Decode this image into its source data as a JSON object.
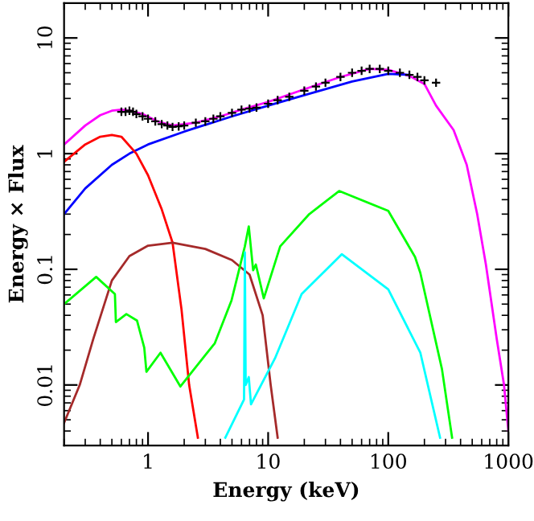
{
  "chart_data": {
    "type": "line",
    "xlabel": "Energy (keV)",
    "ylabel": "Energy × Flux",
    "log": "xy",
    "xlim": [
      0.2,
      1000
    ],
    "ylim": [
      0.003,
      20
    ],
    "xticks": [
      1,
      10,
      100,
      1000
    ],
    "yticks": [
      0.01,
      0.1,
      1,
      10
    ],
    "grid": false,
    "legend": false,
    "marker": "none",
    "line_style": "solid",
    "series": [
      {
        "color": "#ff00ff",
        "x": [
          0.2,
          0.3,
          0.4,
          0.5,
          0.6,
          0.7,
          0.9,
          1.2,
          1.6,
          2.5,
          4,
          6,
          10,
          20,
          40,
          70,
          100,
          150,
          200,
          250,
          350,
          450,
          550,
          650,
          800,
          920,
          1000
        ],
        "values": [
          1.2,
          1.75,
          2.15,
          2.35,
          2.4,
          2.35,
          2.2,
          1.9,
          1.75,
          1.85,
          2.1,
          2.4,
          2.8,
          3.6,
          4.6,
          5.4,
          5.3,
          4.7,
          4.0,
          2.6,
          1.6,
          0.8,
          0.3,
          0.11,
          0.025,
          0.01,
          0.004
        ]
      },
      {
        "color": "#0000ff",
        "x": [
          0.2,
          0.3,
          0.5,
          0.7,
          1,
          2,
          5,
          10,
          20,
          50,
          100,
          150
        ],
        "values": [
          0.3,
          0.5,
          0.8,
          1.0,
          1.2,
          1.55,
          2.1,
          2.6,
          3.2,
          4.2,
          4.9,
          4.8
        ]
      },
      {
        "color": "#ff0000",
        "x": [
          0.2,
          0.3,
          0.4,
          0.5,
          0.6,
          0.8,
          1.0,
          1.3,
          1.6,
          1.9,
          2.2,
          2.6
        ],
        "values": [
          0.85,
          1.2,
          1.4,
          1.45,
          1.4,
          1.0,
          0.65,
          0.33,
          0.17,
          0.045,
          0.01,
          0.0035
        ]
      },
      {
        "color": "#a52a2a",
        "x": [
          0.2,
          0.27,
          0.35,
          0.5,
          0.7,
          1,
          1.6,
          3,
          5,
          7,
          9,
          10.5,
          12.0
        ],
        "values": [
          0.0047,
          0.01,
          0.025,
          0.08,
          0.13,
          0.16,
          0.17,
          0.15,
          0.12,
          0.09,
          0.04,
          0.01,
          0.0035
        ]
      },
      {
        "color": "#00ff00",
        "x": [
          0.2,
          0.37,
          0.53,
          0.54,
          0.66,
          0.81,
          0.93,
          0.97,
          1.27,
          1.86,
          3.6,
          4.96,
          6.4,
          6.9,
          7.5,
          7.9,
          9.2,
          12.6,
          22,
          39,
          100,
          167,
          185,
          280,
          340
        ],
        "values": [
          0.05,
          0.086,
          0.061,
          0.035,
          0.041,
          0.036,
          0.021,
          0.013,
          0.019,
          0.0097,
          0.023,
          0.054,
          0.158,
          0.235,
          0.098,
          0.11,
          0.056,
          0.158,
          0.3,
          0.475,
          0.32,
          0.128,
          0.093,
          0.0137,
          0.0035
        ]
      },
      {
        "color": "#00ffff",
        "x": [
          4.4,
          6.3,
          6.4,
          6.5,
          6.9,
          7.2,
          11.4,
          19,
          41,
          100,
          185,
          270
        ],
        "values": [
          0.0035,
          0.0075,
          0.14,
          0.01,
          0.0117,
          0.0068,
          0.017,
          0.061,
          0.135,
          0.067,
          0.019,
          0.0035
        ]
      },
      {
        "type": "scatter",
        "marker": "cross",
        "color": "#000000",
        "x": [
          0.6,
          0.65,
          0.7,
          0.75,
          0.8,
          0.9,
          1.0,
          1.15,
          1.3,
          1.45,
          1.6,
          1.8,
          2,
          2.5,
          3,
          3.5,
          4,
          5,
          6,
          7,
          8,
          10,
          12,
          15,
          20,
          25,
          30,
          40,
          50,
          60,
          70,
          85,
          100,
          125,
          150,
          175,
          200,
          250
        ],
        "values": [
          2.3,
          2.3,
          2.35,
          2.3,
          2.2,
          2.1,
          2.0,
          1.9,
          1.8,
          1.75,
          1.7,
          1.72,
          1.75,
          1.85,
          1.9,
          2.0,
          2.1,
          2.25,
          2.4,
          2.45,
          2.5,
          2.7,
          2.9,
          3.1,
          3.5,
          3.8,
          4.1,
          4.6,
          5.0,
          5.2,
          5.4,
          5.4,
          5.2,
          5.0,
          4.8,
          4.6,
          4.3,
          4.1
        ]
      }
    ]
  }
}
